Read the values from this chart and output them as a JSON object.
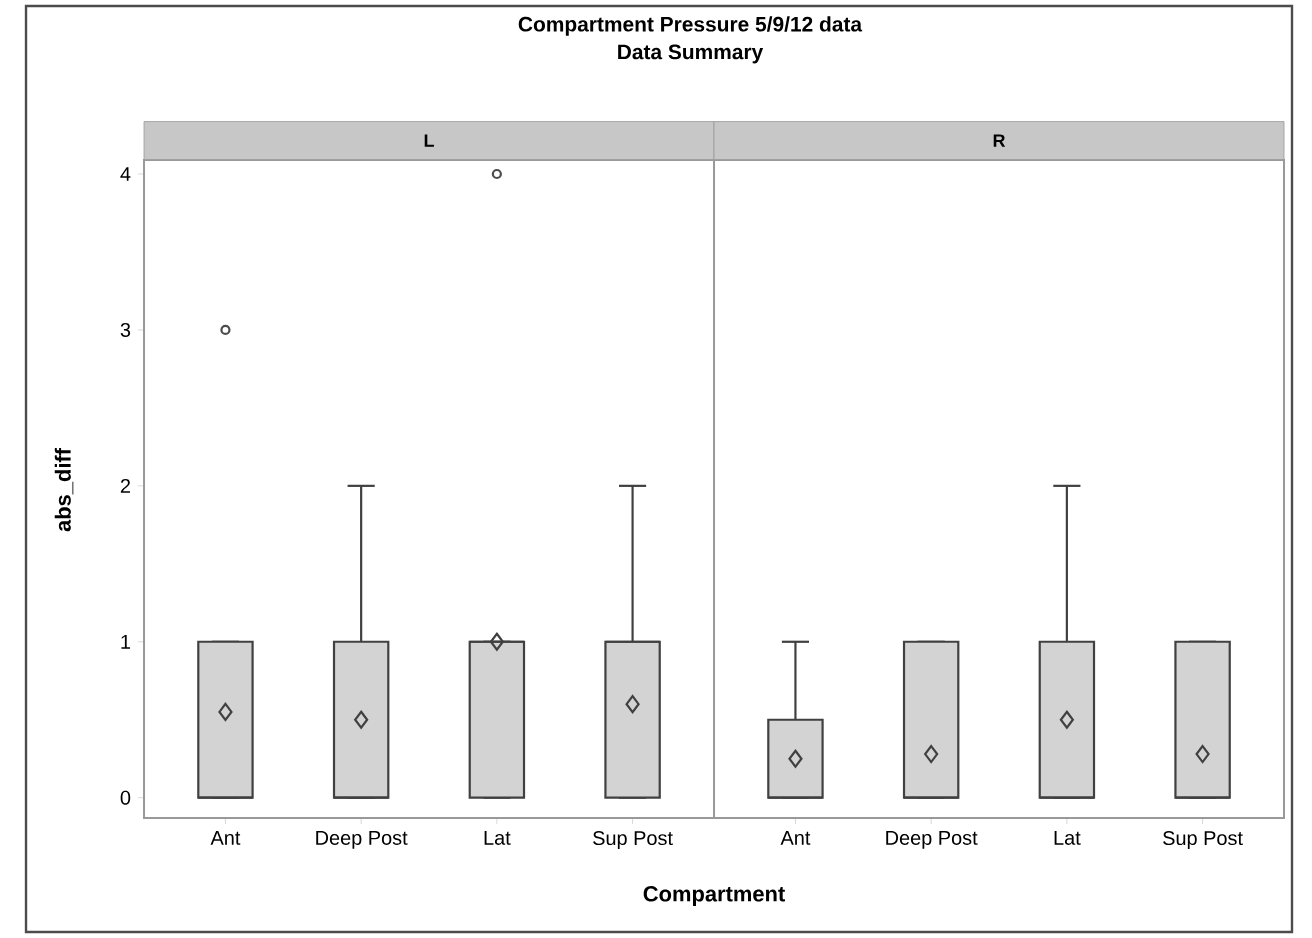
{
  "chart_data": [
    {
      "type": "box",
      "title": "Compartment Pressure 5/9/12 data",
      "subtitle": "Data Summary",
      "annotations": [
        "L"
      ],
      "xlabel": "Compartment",
      "ylabel": "abs_diff",
      "color": "#d3d3d3",
      "categories": [
        "Ant",
        "Deep Post",
        "Lat",
        "Sup Post"
      ],
      "ylim": [
        -0.13,
        4.09
      ],
      "yticks": [
        0,
        1,
        2,
        3,
        4
      ],
      "boxes": [
        {
          "low": 0,
          "q1": 0,
          "median": 0,
          "q3": 1,
          "high": 1,
          "mean": 0.55,
          "outliers": [
            3
          ]
        },
        {
          "low": 0,
          "q1": 0,
          "median": 0,
          "q3": 1,
          "high": 2,
          "mean": 0.5
        },
        {
          "low": 0,
          "q1": 0,
          "median": 1,
          "q3": 1,
          "high": 1,
          "mean": 1.0,
          "outliers": [
            4
          ]
        },
        {
          "low": 0,
          "q1": 0,
          "median": 1,
          "q3": 1,
          "high": 2,
          "mean": 0.6
        }
      ]
    },
    {
      "type": "box",
      "annotations": [
        "R"
      ],
      "color": "#d3d3d3",
      "categories": [
        "Ant",
        "Deep Post",
        "Lat",
        "Sup Post"
      ],
      "ylim": [
        -0.13,
        4.09
      ],
      "tick_labels": "x",
      "boxes": [
        {
          "low": 0,
          "q1": 0,
          "median": 0,
          "q3": 0.5,
          "high": 1,
          "mean": 0.25
        },
        {
          "low": 0,
          "q1": 0,
          "median": 0,
          "q3": 1,
          "high": 1,
          "mean": 0.28
        },
        {
          "low": 0,
          "q1": 0,
          "median": 0,
          "q3": 1,
          "high": 2,
          "mean": 0.5
        },
        {
          "low": 0,
          "q1": 0,
          "median": 0,
          "q3": 1,
          "high": 1,
          "mean": 0.28
        }
      ]
    }
  ]
}
